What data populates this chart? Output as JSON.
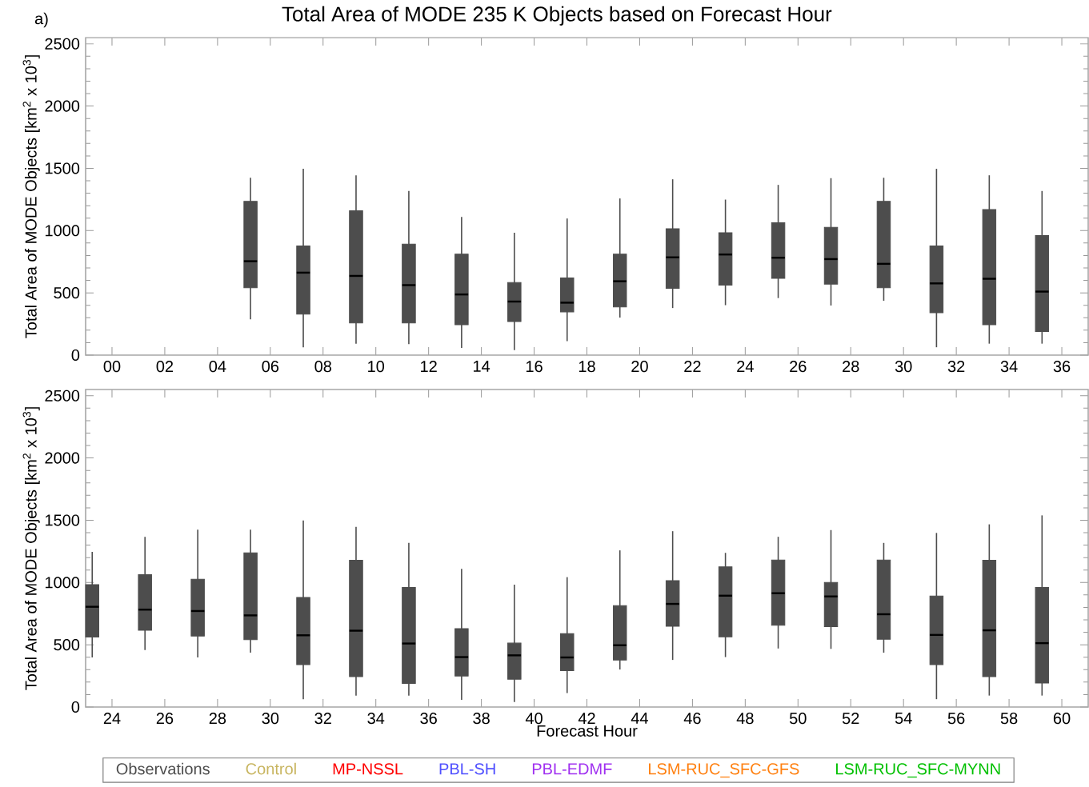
{
  "chart_data": [
    {
      "type": "box",
      "title": "Total Area of MODE 235 K Objects based on Forecast Hour",
      "ylabel": "Total Area of MODE Objects [km$^{2}$ x 10$^{3}$]",
      "annotations": [
        "a)"
      ],
      "xlim": [
        -1,
        37
      ],
      "xticks": [
        {
          "value": 0,
          "label": "00"
        },
        {
          "value": 2,
          "label": "02"
        },
        {
          "value": 4,
          "label": "04"
        },
        {
          "value": 6,
          "label": "06"
        },
        {
          "value": 8,
          "label": "08"
        },
        10,
        12,
        14,
        16,
        18,
        20,
        22,
        24,
        26,
        28,
        30,
        32,
        34,
        36
      ],
      "ylim": [
        0,
        2550
      ],
      "yticks": [
        0,
        500,
        1000,
        1500,
        2000,
        2500
      ],
      "series": [
        {
          "color": "#4d4d4d",
          "x": [
            5.25,
            7.25,
            9.25,
            11.25,
            13.25,
            15.25,
            17.25,
            19.25,
            21.25,
            23.25,
            25.25,
            27.25,
            29.25,
            31.25,
            33.25,
            35.25
          ],
          "boxes": [
            {
              "low": 287,
              "q1": 541,
              "median": 754,
              "q3": 1235,
              "high": 1424
            },
            {
              "low": 63,
              "q1": 329,
              "median": 662,
              "q3": 877,
              "high": 1496
            },
            {
              "low": 92,
              "q1": 258,
              "median": 636,
              "q3": 1160,
              "high": 1444
            },
            {
              "low": 89,
              "q1": 258,
              "median": 562,
              "q3": 891,
              "high": 1318
            },
            {
              "low": 57,
              "q1": 244,
              "median": 487,
              "q3": 811,
              "high": 1109
            },
            {
              "low": 40,
              "q1": 269,
              "median": 430,
              "q3": 582,
              "high": 983
            },
            {
              "low": 112,
              "q1": 347,
              "median": 421,
              "q3": 619,
              "high": 1097
            },
            {
              "low": 301,
              "q1": 387,
              "median": 593,
              "q3": 811,
              "high": 1258
            },
            {
              "low": 378,
              "q1": 536,
              "median": 785,
              "q3": 1014,
              "high": 1412
            },
            {
              "low": 401,
              "q1": 562,
              "median": 808,
              "q3": 983,
              "high": 1249
            },
            {
              "low": 458,
              "q1": 616,
              "median": 782,
              "q3": 1063,
              "high": 1367
            },
            {
              "low": 398,
              "q1": 570,
              "median": 771,
              "q3": 1026,
              "high": 1421
            },
            {
              "low": 436,
              "q1": 541,
              "median": 733,
              "q3": 1235,
              "high": 1424
            },
            {
              "low": 63,
              "q1": 341,
              "median": 576,
              "q3": 877,
              "high": 1496
            },
            {
              "low": 92,
              "q1": 244,
              "median": 613,
              "q3": 1169,
              "high": 1444
            },
            {
              "low": 92,
              "q1": 189,
              "median": 510,
              "q3": 960,
              "high": 1318
            }
          ]
        }
      ]
    },
    {
      "type": "box",
      "xlabel": "Forecast Hour",
      "ylabel": "Total Area of MODE Objects [km$^{2}$ x 10$^{3}$]",
      "legend": "bottom",
      "xlim": [
        23,
        61
      ],
      "xticks": [
        24,
        26,
        28,
        30,
        32,
        34,
        36,
        38,
        40,
        42,
        44,
        46,
        48,
        50,
        52,
        54,
        56,
        58,
        60
      ],
      "ylim": [
        0,
        2550
      ],
      "yticks": [
        0,
        500,
        1000,
        1500,
        2000,
        2500
      ],
      "series": [
        {
          "name": "Observations",
          "color": "#4d4d4d",
          "x": [
            23.25,
            25.25,
            27.25,
            29.25,
            31.25,
            33.25,
            35.25,
            37.25,
            39.25,
            41.25,
            43.25,
            45.25,
            47.25,
            49.25,
            51.25,
            53.25,
            55.25,
            57.25,
            59.25
          ],
          "boxes": [
            {
              "low": 398,
              "q1": 562,
              "median": 805,
              "q3": 983,
              "high": 1246
            },
            {
              "low": 458,
              "q1": 616,
              "median": 782,
              "q3": 1063,
              "high": 1367
            },
            {
              "low": 398,
              "q1": 570,
              "median": 771,
              "q3": 1026,
              "high": 1424
            },
            {
              "low": 436,
              "q1": 541,
              "median": 736,
              "q3": 1238,
              "high": 1424
            },
            {
              "low": 63,
              "q1": 341,
              "median": 576,
              "q3": 880,
              "high": 1498
            },
            {
              "low": 92,
              "q1": 244,
              "median": 613,
              "q3": 1178,
              "high": 1447
            },
            {
              "low": 92,
              "q1": 189,
              "median": 510,
              "q3": 960,
              "high": 1318
            },
            {
              "low": 57,
              "q1": 249,
              "median": 401,
              "q3": 630,
              "high": 1109
            },
            {
              "low": 40,
              "q1": 223,
              "median": 415,
              "q3": 513,
              "high": 983
            },
            {
              "low": 112,
              "q1": 292,
              "median": 398,
              "q3": 590,
              "high": 1043
            },
            {
              "low": 301,
              "q1": 378,
              "median": 496,
              "q3": 814,
              "high": 1258
            },
            {
              "low": 378,
              "q1": 648,
              "median": 828,
              "q3": 1014,
              "high": 1412
            },
            {
              "low": 401,
              "q1": 564,
              "median": 894,
              "q3": 1126,
              "high": 1238
            },
            {
              "low": 470,
              "q1": 656,
              "median": 914,
              "q3": 1180,
              "high": 1367
            },
            {
              "low": 467,
              "q1": 645,
              "median": 888,
              "q3": 1000,
              "high": 1421
            },
            {
              "low": 436,
              "q1": 544,
              "median": 745,
              "q3": 1180,
              "high": 1318
            },
            {
              "low": 63,
              "q1": 341,
              "median": 579,
              "q3": 891,
              "high": 1398
            },
            {
              "low": 92,
              "q1": 244,
              "median": 616,
              "q3": 1178,
              "high": 1467
            },
            {
              "low": 92,
              "q1": 192,
              "median": 513,
              "q3": 960,
              "high": 1539
            }
          ]
        },
        {
          "name": "Control",
          "color": "#c8b560"
        },
        {
          "name": "MP-NSSL",
          "color": "#ff0000"
        },
        {
          "name": "PBL-SH",
          "color": "#5050ff"
        },
        {
          "name": "PBL-EDMF",
          "color": "#a030f0"
        },
        {
          "name": "LSM-RUC_SFC-GFS",
          "color": "#ff8010"
        },
        {
          "name": "LSM-RUC_SFC-MYNN",
          "color": "#00c000"
        }
      ]
    }
  ]
}
